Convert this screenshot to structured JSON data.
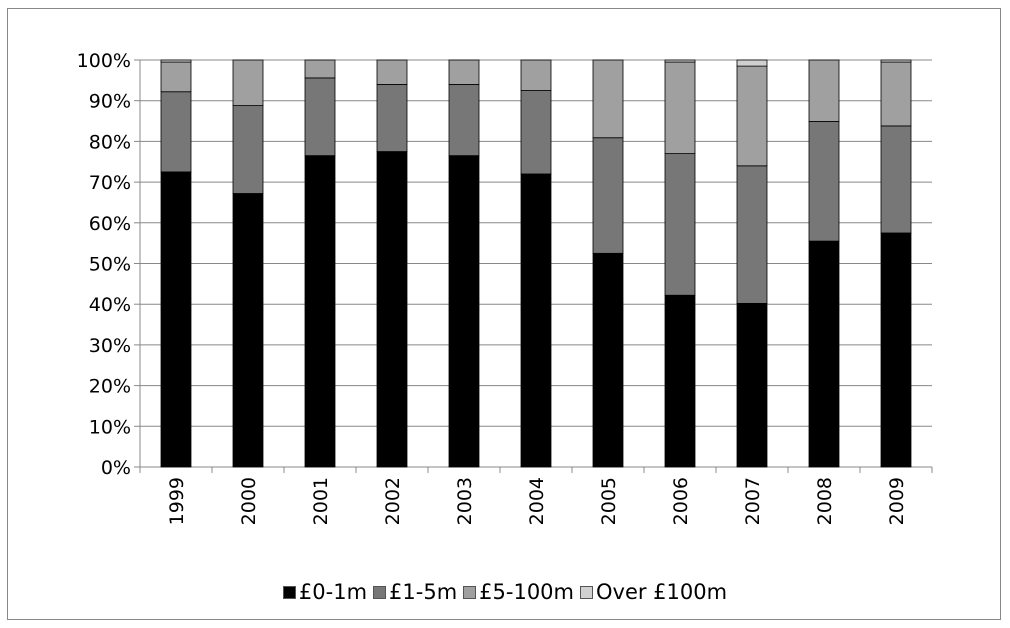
{
  "chart_data": {
    "type": "bar",
    "stacked": true,
    "percent_stacked": true,
    "title": "",
    "xlabel": "",
    "ylabel": "",
    "categories": [
      "1999",
      "2000",
      "2001",
      "2002",
      "2003",
      "2004",
      "2005",
      "2006",
      "2007",
      "2008",
      "2009"
    ],
    "ylim": [
      0,
      100
    ],
    "y_ticks": [
      "0%",
      "10%",
      "20%",
      "30%",
      "40%",
      "50%",
      "60%",
      "70%",
      "80%",
      "90%",
      "100%"
    ],
    "grid": true,
    "legend_position": "bottom",
    "series": [
      {
        "name": "£0-1m",
        "color": "#000000",
        "values": [
          72.5,
          67.2,
          76.5,
          77.5,
          76.5,
          72.0,
          52.5,
          42.2,
          40.2,
          55.5,
          57.5
        ]
      },
      {
        "name": "£1-5m",
        "color": "#777777",
        "values": [
          19.7,
          21.6,
          19.1,
          16.5,
          17.5,
          20.5,
          28.4,
          34.8,
          33.8,
          29.4,
          26.3
        ]
      },
      {
        "name": "£5-100m",
        "color": "#a0a0a0",
        "values": [
          7.3,
          11.2,
          4.4,
          6.0,
          6.0,
          7.5,
          19.1,
          22.5,
          24.5,
          15.1,
          15.7
        ]
      },
      {
        "name": "Over £100m",
        "color": "#d0d0d0",
        "values": [
          0.5,
          0.0,
          0.0,
          0.0,
          0.0,
          0.0,
          0.0,
          0.5,
          1.5,
          0.0,
          0.5
        ]
      }
    ]
  }
}
